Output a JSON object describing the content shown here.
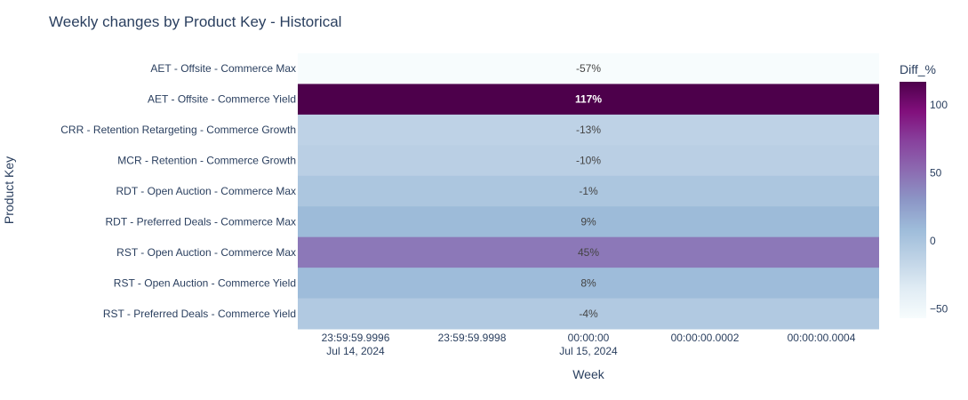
{
  "chart_data": {
    "type": "heatmap",
    "title": "Weekly changes by Product Key - Historical",
    "xlabel": "Week",
    "ylabel": "Product Key",
    "categories": [
      "AET - Offsite - Commerce Max",
      "AET - Offsite - Commerce Yield",
      "CRR - Retention Retargeting - Commerce Growth",
      "MCR - Retention - Commerce Growth",
      "RDT - Open Auction - Commerce Max",
      "RDT - Preferred Deals - Commerce Max",
      "RST - Open Auction - Commerce Max",
      "RST - Open Auction - Commerce Yield",
      "RST - Preferred Deals - Commerce Yield"
    ],
    "x": [
      "2024-07-15"
    ],
    "values": [
      -57,
      117,
      -13,
      -10,
      -1,
      9,
      45,
      8,
      -4
    ],
    "labels": [
      "-57%",
      "117%",
      "-13%",
      "-10%",
      "-1%",
      "9%",
      "45%",
      "8%",
      "-4%"
    ],
    "x_ticks": [
      {
        "line1": "23:59:59.9996",
        "line2": "Jul 14, 2024"
      },
      {
        "line1": "23:59:59.9998",
        "line2": ""
      },
      {
        "line1": "00:00:00",
        "line2": "Jul 15, 2024"
      },
      {
        "line1": "00:00:00.0002",
        "line2": ""
      },
      {
        "line1": "00:00:00.0004",
        "line2": ""
      }
    ],
    "colorbar": {
      "title": "Diff_%",
      "range": [
        -57,
        117
      ],
      "ticks": [
        100,
        50,
        0,
        -50
      ],
      "colorscale": "BuPu"
    }
  }
}
